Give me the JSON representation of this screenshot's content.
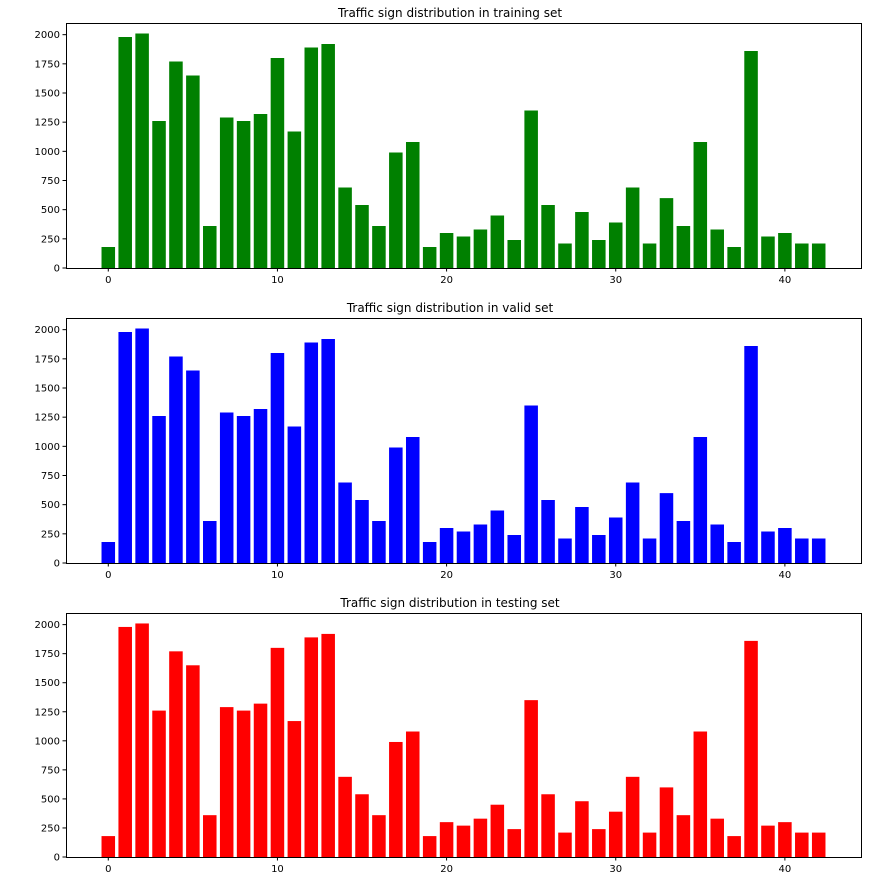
{
  "chart_data": [
    {
      "type": "bar",
      "title": "Traffic sign distribution in training set",
      "xlabel": "",
      "ylabel": "",
      "color": "#008000",
      "xlim": [
        -2.5,
        44.5
      ],
      "ylim": [
        0,
        2100
      ],
      "xticks": [
        0,
        10,
        20,
        30,
        40
      ],
      "yticks": [
        0,
        250,
        500,
        750,
        1000,
        1250,
        1500,
        1750,
        2000
      ],
      "grid": false,
      "categories": [
        0,
        1,
        2,
        3,
        4,
        5,
        6,
        7,
        8,
        9,
        10,
        11,
        12,
        13,
        14,
        15,
        16,
        17,
        18,
        19,
        20,
        21,
        22,
        23,
        24,
        25,
        26,
        27,
        28,
        29,
        30,
        31,
        32,
        33,
        34,
        35,
        36,
        37,
        38,
        39,
        40,
        41,
        42
      ],
      "values": [
        180,
        1980,
        2010,
        1260,
        1770,
        1650,
        360,
        1290,
        1260,
        1320,
        1800,
        1170,
        1890,
        1920,
        690,
        540,
        360,
        990,
        1080,
        180,
        300,
        270,
        330,
        450,
        240,
        1350,
        540,
        210,
        480,
        240,
        390,
        690,
        210,
        599,
        360,
        1080,
        330,
        180,
        1860,
        270,
        300,
        210,
        210
      ]
    },
    {
      "type": "bar",
      "title": "Traffic sign distribution in valid set",
      "xlabel": "",
      "ylabel": "",
      "color": "#0000ff",
      "xlim": [
        -2.5,
        44.5
      ],
      "ylim": [
        0,
        2100
      ],
      "xticks": [
        0,
        10,
        20,
        30,
        40
      ],
      "yticks": [
        0,
        250,
        500,
        750,
        1000,
        1250,
        1500,
        1750,
        2000
      ],
      "grid": false,
      "categories": [
        0,
        1,
        2,
        3,
        4,
        5,
        6,
        7,
        8,
        9,
        10,
        11,
        12,
        13,
        14,
        15,
        16,
        17,
        18,
        19,
        20,
        21,
        22,
        23,
        24,
        25,
        26,
        27,
        28,
        29,
        30,
        31,
        32,
        33,
        34,
        35,
        36,
        37,
        38,
        39,
        40,
        41,
        42
      ],
      "values": [
        180,
        1980,
        2010,
        1260,
        1770,
        1650,
        360,
        1290,
        1260,
        1320,
        1800,
        1170,
        1890,
        1920,
        690,
        540,
        360,
        990,
        1080,
        180,
        300,
        270,
        330,
        450,
        240,
        1350,
        540,
        210,
        480,
        240,
        390,
        690,
        210,
        599,
        360,
        1080,
        330,
        180,
        1860,
        270,
        300,
        210,
        210
      ]
    },
    {
      "type": "bar",
      "title": "Traffic sign distribution in testing set",
      "xlabel": "",
      "ylabel": "",
      "color": "#ff0000",
      "xlim": [
        -2.5,
        44.5
      ],
      "ylim": [
        0,
        2100
      ],
      "xticks": [
        0,
        10,
        20,
        30,
        40
      ],
      "yticks": [
        0,
        250,
        500,
        750,
        1000,
        1250,
        1500,
        1750,
        2000
      ],
      "grid": false,
      "categories": [
        0,
        1,
        2,
        3,
        4,
        5,
        6,
        7,
        8,
        9,
        10,
        11,
        12,
        13,
        14,
        15,
        16,
        17,
        18,
        19,
        20,
        21,
        22,
        23,
        24,
        25,
        26,
        27,
        28,
        29,
        30,
        31,
        32,
        33,
        34,
        35,
        36,
        37,
        38,
        39,
        40,
        41,
        42
      ],
      "values": [
        180,
        1980,
        2010,
        1260,
        1770,
        1650,
        360,
        1290,
        1260,
        1320,
        1800,
        1170,
        1890,
        1920,
        690,
        540,
        360,
        990,
        1080,
        180,
        300,
        270,
        330,
        450,
        240,
        1350,
        540,
        210,
        480,
        240,
        390,
        690,
        210,
        599,
        360,
        1080,
        330,
        180,
        1860,
        270,
        300,
        210,
        210
      ]
    }
  ]
}
